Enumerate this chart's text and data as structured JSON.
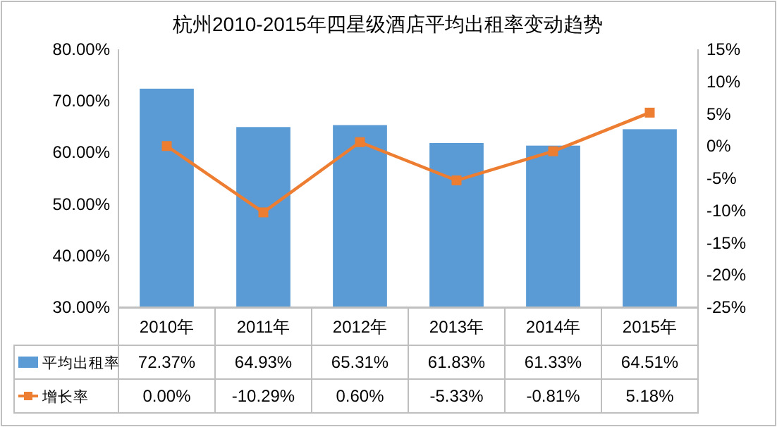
{
  "chart_data": {
    "type": "bar",
    "title": "杭州2010-2015年四星级酒店平均出租率变动趋势",
    "categories": [
      "2010年",
      "2011年",
      "2012年",
      "2013年",
      "2014年",
      "2015年"
    ],
    "series": [
      {
        "name": "平均出租率",
        "color": "#5b9bd5",
        "values": [
          72.37,
          64.93,
          65.31,
          61.83,
          61.33,
          64.51
        ],
        "value_labels": [
          "72.37%",
          "64.93%",
          "65.31%",
          "61.83%",
          "61.33%",
          "64.51%"
        ]
      },
      {
        "name": "增长率",
        "type": "line",
        "axis": "y2",
        "color": "#ed7d31",
        "marker": "square",
        "values": [
          0,
          -10.29,
          0.6,
          -5.33,
          -0.81,
          5.18
        ],
        "value_labels": [
          "0.00%",
          "-10.29%",
          "0.60%",
          "-5.33%",
          "-0.81%",
          "5.18%"
        ]
      }
    ],
    "ylim": [
      30,
      80
    ],
    "yticks": [
      {
        "value": 30,
        "label": "30.00%"
      },
      {
        "value": 40,
        "label": "40.00%"
      },
      {
        "value": 50,
        "label": "50.00%"
      },
      {
        "value": 60,
        "label": "60.00%"
      },
      {
        "value": 70,
        "label": "70.00%"
      },
      {
        "value": 80,
        "label": "80.00%"
      }
    ],
    "y2lim": [
      -25,
      15
    ],
    "y2ticks": [
      {
        "value": -25,
        "label": "-25%"
      },
      {
        "value": -20,
        "label": "-20%"
      },
      {
        "value": -15,
        "label": "-15%"
      },
      {
        "value": -10,
        "label": "-10%"
      },
      {
        "value": -5,
        "label": "-5%"
      },
      {
        "value": 0,
        "label": "0%"
      },
      {
        "value": 5,
        "label": "5%"
      },
      {
        "value": 10,
        "label": "10%"
      },
      {
        "value": 15,
        "label": "15%"
      }
    ],
    "data_labels": true,
    "legend": "bottom",
    "grid": false
  }
}
